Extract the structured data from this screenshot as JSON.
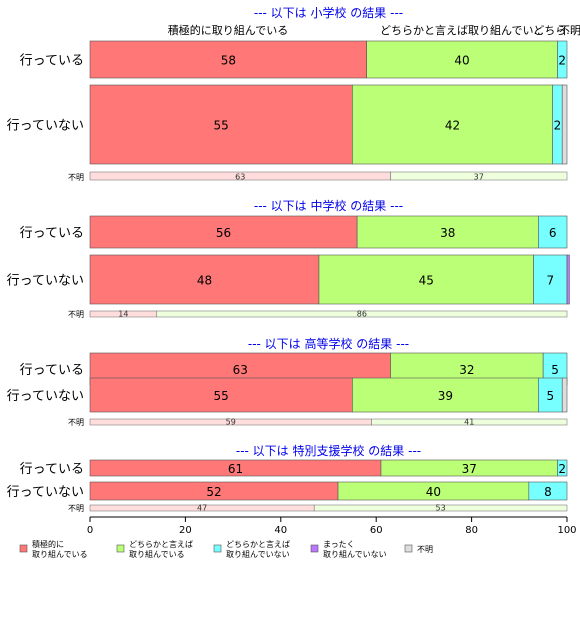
{
  "colors": {
    "s1": "#ff7777",
    "s2": "#bbff77",
    "s3": "#77ffff",
    "s4": "#bb77ff",
    "s5": "#dddddd",
    "unknown1": "#ffdddd",
    "unknown2": "#eeffdd",
    "title": "#0000ee"
  },
  "top_labels": [
    "積極的に取り組んでいる",
    "どちらかと言えば取り組んでい...",
    "どちら...",
    "不明"
  ],
  "chart_data": {
    "type": "bar",
    "orientation": "horizontal-stacked",
    "xlim": [
      0,
      100
    ],
    "xticks": [
      0,
      20,
      40,
      60,
      80,
      100
    ],
    "legend_position": "bottom",
    "series_names": [
      "積極的に\n取り組んでいる",
      "どちらかと言えば\n取り組んでいる",
      "どちらかと言えば\n取り組んでいない",
      "まったく\n取り組んでいない",
      "不明"
    ],
    "sections": [
      {
        "title": "--- 以下は 小学校 の結果 ---",
        "rows": [
          {
            "label": "行っている",
            "values": [
              58,
              40,
              2,
              0,
              0
            ]
          },
          {
            "label": "行っていない",
            "values": [
              55,
              42,
              2,
              0,
              0
            ]
          }
        ],
        "unknown": {
          "label": "不明",
          "values": [
            63,
            37
          ]
        }
      },
      {
        "title": "--- 以下は 中学校 の結果 ---",
        "rows": [
          {
            "label": "行っている",
            "values": [
              56,
              38,
              6,
              0,
              0
            ]
          },
          {
            "label": "行っていない",
            "values": [
              48,
              45,
              7,
              0.5,
              0
            ]
          }
        ],
        "unknown": {
          "label": "不明",
          "values": [
            14,
            86
          ]
        }
      },
      {
        "title": "--- 以下は 高等学校 の結果 ---",
        "rows": [
          {
            "label": "行っている",
            "values": [
              63,
              32,
              5,
              0,
              0
            ]
          },
          {
            "label": "行っていない",
            "values": [
              55,
              39,
              5,
              0,
              0
            ]
          }
        ],
        "unknown": {
          "label": "不明",
          "values": [
            59,
            41
          ]
        }
      },
      {
        "title": "--- 以下は 特別支援学校 の結果 ---",
        "rows": [
          {
            "label": "行っている",
            "values": [
              61,
              37,
              2,
              0,
              0
            ]
          },
          {
            "label": "行っていない",
            "values": [
              52,
              40,
              8,
              0,
              0
            ]
          }
        ],
        "unknown": {
          "label": "不明",
          "values": [
            47,
            53
          ]
        }
      }
    ]
  }
}
